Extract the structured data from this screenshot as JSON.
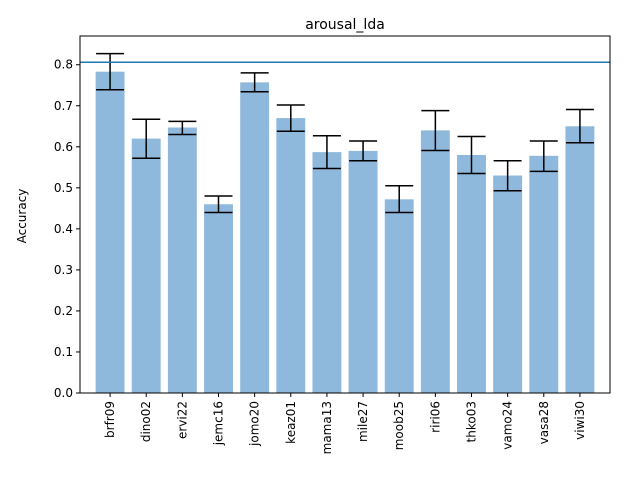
{
  "chart_data": {
    "type": "bar",
    "title": "arousal_lda",
    "xlabel": "",
    "ylabel": "Accuracy",
    "ylim": [
      0,
      0.87
    ],
    "yticks": [
      "0.0",
      "0.1",
      "0.2",
      "0.3",
      "0.4",
      "0.5",
      "0.6",
      "0.7",
      "0.8"
    ],
    "categories": [
      "brfr09",
      "dino02",
      "ervi22",
      "jemc16",
      "jomo20",
      "keaz01",
      "mama13",
      "mile27",
      "moob25",
      "riri06",
      "thko03",
      "vamo24",
      "vasa28",
      "viwi30"
    ],
    "values": [
      0.783,
      0.62,
      0.647,
      0.46,
      0.757,
      0.67,
      0.587,
      0.59,
      0.472,
      0.64,
      0.58,
      0.53,
      0.578,
      0.65
    ],
    "error_upper": [
      0.827,
      0.667,
      0.662,
      0.48,
      0.78,
      0.702,
      0.627,
      0.614,
      0.505,
      0.688,
      0.625,
      0.566,
      0.614,
      0.691
    ],
    "error_lower": [
      0.739,
      0.572,
      0.63,
      0.44,
      0.734,
      0.638,
      0.547,
      0.566,
      0.44,
      0.591,
      0.535,
      0.493,
      0.54,
      0.61
    ],
    "reference_line": 0.806,
    "grid": false,
    "colors": {
      "bar": "#8fb9dc",
      "error": "#000000",
      "reference_line": "#1f77b4",
      "axis": "#000000"
    }
  }
}
